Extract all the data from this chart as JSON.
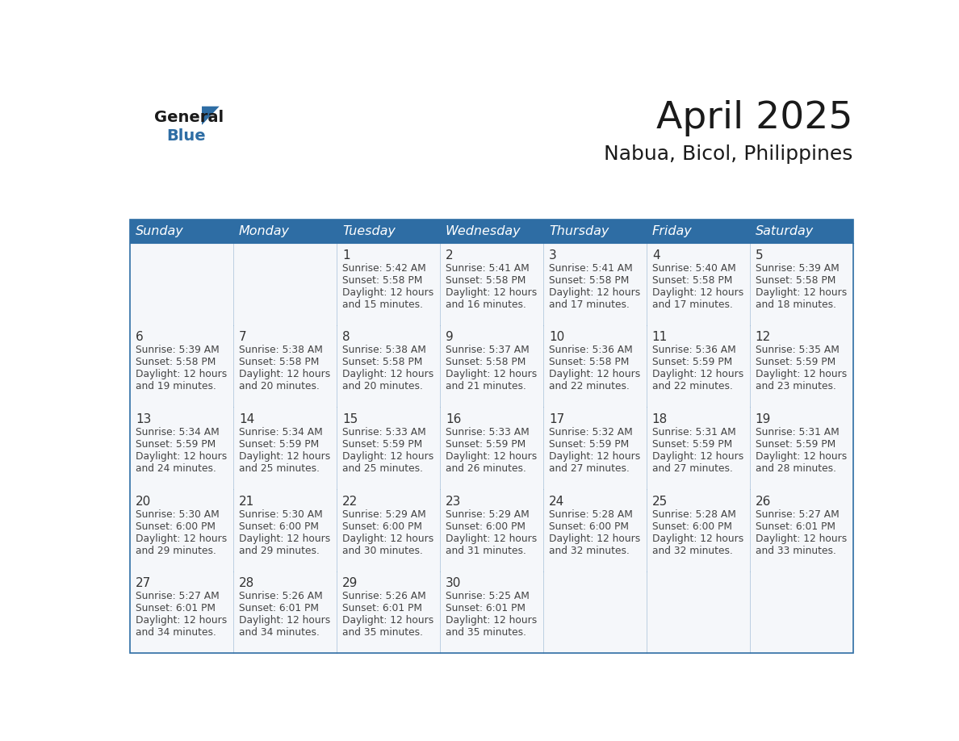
{
  "title": "April 2025",
  "subtitle": "Nabua, Bicol, Philippines",
  "days_of_week": [
    "Sunday",
    "Monday",
    "Tuesday",
    "Wednesday",
    "Thursday",
    "Friday",
    "Saturday"
  ],
  "header_bg": "#2E6DA4",
  "header_text": "#FFFFFF",
  "cell_bg": "#F5F7FA",
  "cell_bg_empty": "#FFFFFF",
  "row_divider_color": "#2E6DA4",
  "border_color": "#2E6DA4",
  "title_color": "#1a1a1a",
  "subtitle_color": "#1a1a1a",
  "text_color": "#444444",
  "day_num_color": "#333333",
  "logo_general_color": "#1a1a1a",
  "logo_blue_color": "#2E6DA4",
  "calendar_data": [
    [
      {
        "day": null,
        "sunrise": null,
        "sunset": null,
        "daylight": null
      },
      {
        "day": null,
        "sunrise": null,
        "sunset": null,
        "daylight": null
      },
      {
        "day": 1,
        "sunrise": "5:42 AM",
        "sunset": "5:58 PM",
        "daylight": "12 hours and 15 minutes"
      },
      {
        "day": 2,
        "sunrise": "5:41 AM",
        "sunset": "5:58 PM",
        "daylight": "12 hours and 16 minutes"
      },
      {
        "day": 3,
        "sunrise": "5:41 AM",
        "sunset": "5:58 PM",
        "daylight": "12 hours and 17 minutes"
      },
      {
        "day": 4,
        "sunrise": "5:40 AM",
        "sunset": "5:58 PM",
        "daylight": "12 hours and 17 minutes"
      },
      {
        "day": 5,
        "sunrise": "5:39 AM",
        "sunset": "5:58 PM",
        "daylight": "12 hours and 18 minutes"
      }
    ],
    [
      {
        "day": 6,
        "sunrise": "5:39 AM",
        "sunset": "5:58 PM",
        "daylight": "12 hours and 19 minutes"
      },
      {
        "day": 7,
        "sunrise": "5:38 AM",
        "sunset": "5:58 PM",
        "daylight": "12 hours and 20 minutes"
      },
      {
        "day": 8,
        "sunrise": "5:38 AM",
        "sunset": "5:58 PM",
        "daylight": "12 hours and 20 minutes"
      },
      {
        "day": 9,
        "sunrise": "5:37 AM",
        "sunset": "5:58 PM",
        "daylight": "12 hours and 21 minutes"
      },
      {
        "day": 10,
        "sunrise": "5:36 AM",
        "sunset": "5:58 PM",
        "daylight": "12 hours and 22 minutes"
      },
      {
        "day": 11,
        "sunrise": "5:36 AM",
        "sunset": "5:59 PM",
        "daylight": "12 hours and 22 minutes"
      },
      {
        "day": 12,
        "sunrise": "5:35 AM",
        "sunset": "5:59 PM",
        "daylight": "12 hours and 23 minutes"
      }
    ],
    [
      {
        "day": 13,
        "sunrise": "5:34 AM",
        "sunset": "5:59 PM",
        "daylight": "12 hours and 24 minutes"
      },
      {
        "day": 14,
        "sunrise": "5:34 AM",
        "sunset": "5:59 PM",
        "daylight": "12 hours and 25 minutes"
      },
      {
        "day": 15,
        "sunrise": "5:33 AM",
        "sunset": "5:59 PM",
        "daylight": "12 hours and 25 minutes"
      },
      {
        "day": 16,
        "sunrise": "5:33 AM",
        "sunset": "5:59 PM",
        "daylight": "12 hours and 26 minutes"
      },
      {
        "day": 17,
        "sunrise": "5:32 AM",
        "sunset": "5:59 PM",
        "daylight": "12 hours and 27 minutes"
      },
      {
        "day": 18,
        "sunrise": "5:31 AM",
        "sunset": "5:59 PM",
        "daylight": "12 hours and 27 minutes"
      },
      {
        "day": 19,
        "sunrise": "5:31 AM",
        "sunset": "5:59 PM",
        "daylight": "12 hours and 28 minutes"
      }
    ],
    [
      {
        "day": 20,
        "sunrise": "5:30 AM",
        "sunset": "6:00 PM",
        "daylight": "12 hours and 29 minutes"
      },
      {
        "day": 21,
        "sunrise": "5:30 AM",
        "sunset": "6:00 PM",
        "daylight": "12 hours and 29 minutes"
      },
      {
        "day": 22,
        "sunrise": "5:29 AM",
        "sunset": "6:00 PM",
        "daylight": "12 hours and 30 minutes"
      },
      {
        "day": 23,
        "sunrise": "5:29 AM",
        "sunset": "6:00 PM",
        "daylight": "12 hours and 31 minutes"
      },
      {
        "day": 24,
        "sunrise": "5:28 AM",
        "sunset": "6:00 PM",
        "daylight": "12 hours and 32 minutes"
      },
      {
        "day": 25,
        "sunrise": "5:28 AM",
        "sunset": "6:00 PM",
        "daylight": "12 hours and 32 minutes"
      },
      {
        "day": 26,
        "sunrise": "5:27 AM",
        "sunset": "6:01 PM",
        "daylight": "12 hours and 33 minutes"
      }
    ],
    [
      {
        "day": 27,
        "sunrise": "5:27 AM",
        "sunset": "6:01 PM",
        "daylight": "12 hours and 34 minutes"
      },
      {
        "day": 28,
        "sunrise": "5:26 AM",
        "sunset": "6:01 PM",
        "daylight": "12 hours and 34 minutes"
      },
      {
        "day": 29,
        "sunrise": "5:26 AM",
        "sunset": "6:01 PM",
        "daylight": "12 hours and 35 minutes"
      },
      {
        "day": 30,
        "sunrise": "5:25 AM",
        "sunset": "6:01 PM",
        "daylight": "12 hours and 35 minutes"
      },
      {
        "day": null,
        "sunrise": null,
        "sunset": null,
        "daylight": null
      },
      {
        "day": null,
        "sunrise": null,
        "sunset": null,
        "daylight": null
      },
      {
        "day": null,
        "sunrise": null,
        "sunset": null,
        "daylight": null
      }
    ]
  ]
}
